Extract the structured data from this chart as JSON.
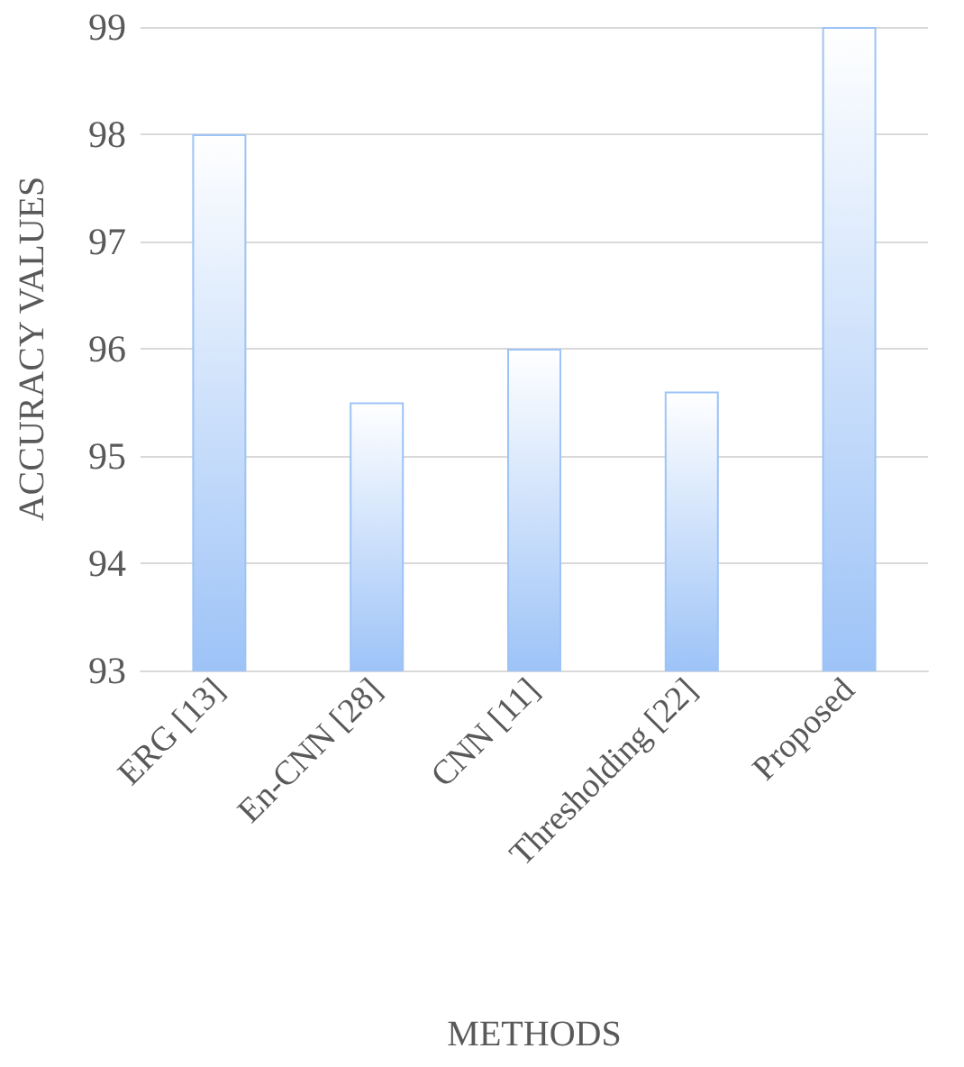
{
  "chart_data": {
    "type": "bar",
    "xlabel": "METHODS",
    "ylabel": "ACCURACY VALUES",
    "categories": [
      "ERG [13]",
      "En-CNN [28]",
      "CNN [11]",
      "Thresholding [22]",
      "Proposed"
    ],
    "values": [
      98,
      95.5,
      96,
      95.6,
      99
    ],
    "color": "#9dc3f7",
    "ylim": [
      93,
      99
    ],
    "yticks": [
      93,
      94,
      95,
      96,
      97,
      98,
      99
    ],
    "grid": "y"
  }
}
